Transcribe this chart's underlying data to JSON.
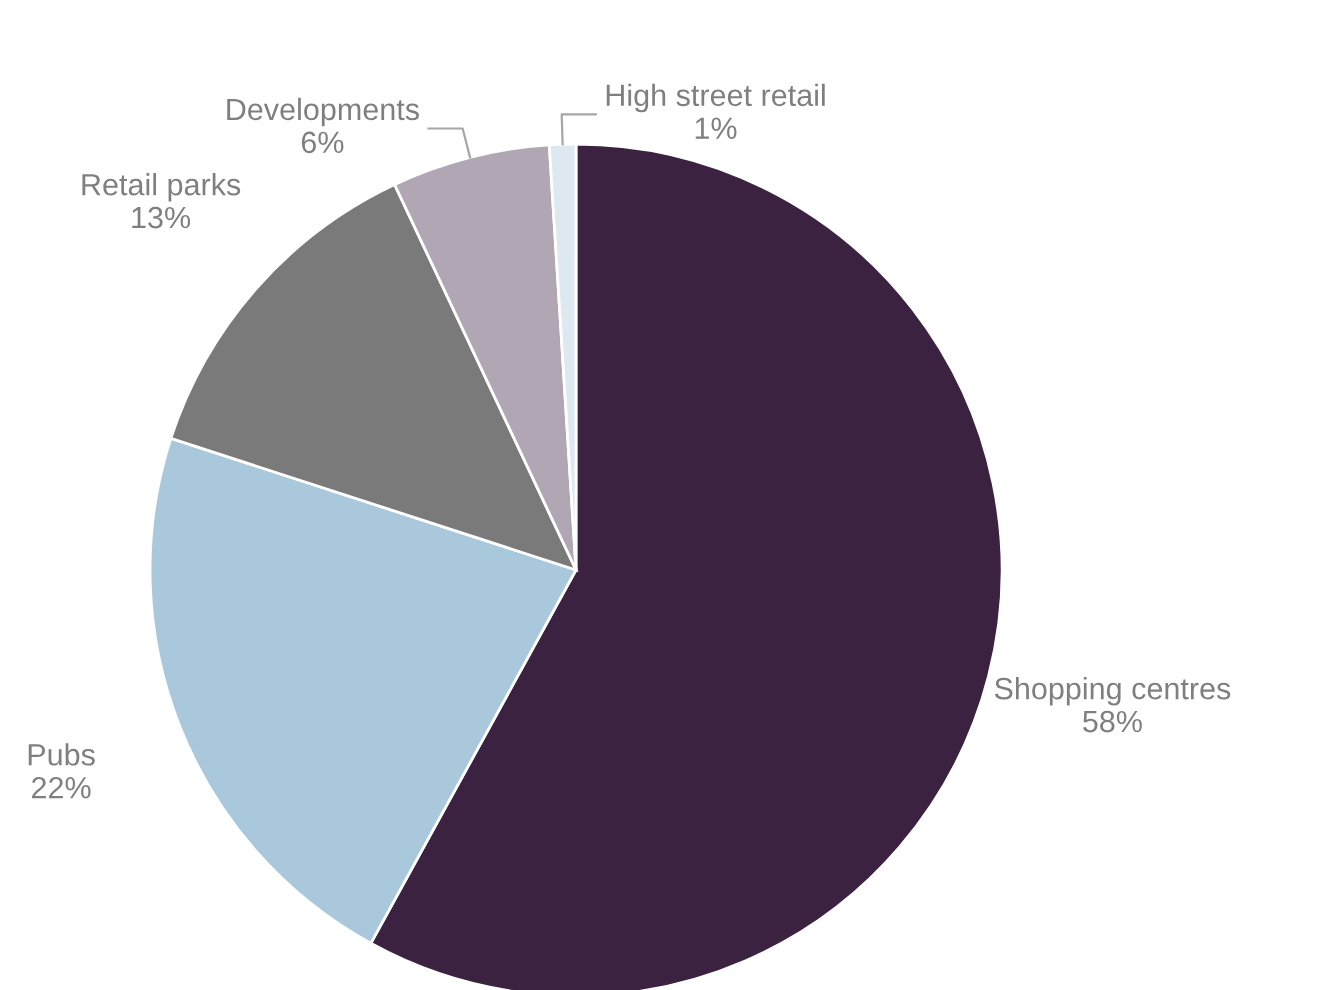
{
  "chart_data": {
    "type": "pie",
    "categories": [
      "Shopping centres",
      "Pubs",
      "Retail parks",
      "Developments",
      "High street retail"
    ],
    "values": [
      58,
      22,
      13,
      6,
      1
    ],
    "value_labels": [
      "58%",
      "22%",
      "13%",
      "6%",
      "1%"
    ],
    "colors": [
      "#3b2240",
      "#a9c8dc",
      "#7a7a7a",
      "#b1a6b3",
      "#dde8f0"
    ]
  }
}
